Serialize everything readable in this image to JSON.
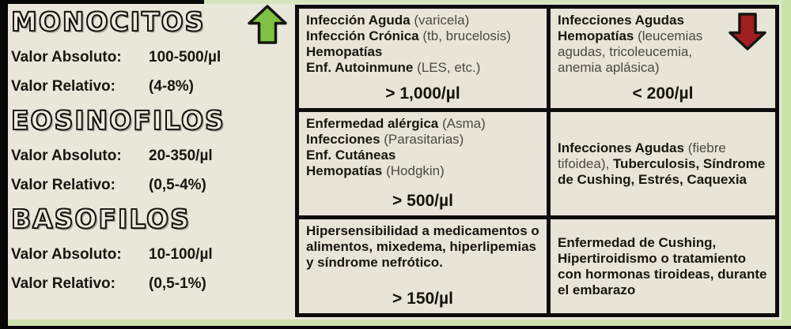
{
  "colors": {
    "background_beige": "#e9e6da",
    "frame_black": "#070707",
    "accent_green_strip": "#cde3ad",
    "arrow_up_green": "#7dc242",
    "arrow_down_red": "#a01d20",
    "text_dark": "#17160f"
  },
  "panel": {
    "sections": [
      {
        "title": "MONOCITOS",
        "abs_label": "Valor Absoluto:",
        "abs_value": "100-500/µl",
        "rel_label": "Valor Relativo:",
        "rel_value": "(4-8%)"
      },
      {
        "title": "EOSINOFILOS",
        "abs_label": "Valor Absoluto:",
        "abs_value": "20-350/µl",
        "rel_label": "Valor Relativo:",
        "rel_value": "(0,5-4%)"
      },
      {
        "title": "BASOFILOS",
        "abs_label": "Valor Absoluto:",
        "abs_value": "10-100/µl",
        "rel_label": "Valor Relativo:",
        "rel_value": "(0,5-1%)"
      }
    ]
  },
  "icons": {
    "up_arrow": "increase-arrow",
    "down_arrow": "decrease-arrow"
  },
  "table": {
    "cells": [
      {
        "name": "monocytosis-causes",
        "lines": [
          [
            {
              "t": "Infección Aguda ",
              "b": 1
            },
            {
              "t": "(varicela)",
              "b": 0
            }
          ],
          [
            {
              "t": "Infección Crónica ",
              "b": 1
            },
            {
              "t": "(tb, brucelosis)",
              "b": 0
            }
          ],
          [
            {
              "t": "Hemopatías",
              "b": 1
            }
          ],
          [
            {
              "t": "Enf. Autoinmune ",
              "b": 1
            },
            {
              "t": "(LES, etc.)",
              "b": 0
            }
          ]
        ],
        "threshold": "> 1,000/µl"
      },
      {
        "name": "monocytopenia-causes",
        "lines": [
          [
            {
              "t": "Infecciones Agudas",
              "b": 1
            }
          ],
          [
            {
              "t": "Hemopatías ",
              "b": 1
            },
            {
              "t": "(leucemias agudas, tricoleucemia, anemia aplásica)",
              "b": 0
            }
          ]
        ],
        "threshold": "< 200/µl"
      },
      {
        "name": "eosinophilia-causes",
        "lines": [
          [
            {
              "t": "Enfermedad alérgica ",
              "b": 1
            },
            {
              "t": "(Asma)",
              "b": 0
            }
          ],
          [
            {
              "t": "Infecciones ",
              "b": 1
            },
            {
              "t": "(Parasitarias)",
              "b": 0
            }
          ],
          [
            {
              "t": "Enf. Cutáneas",
              "b": 1
            }
          ],
          [
            {
              "t": "Hemopatías ",
              "b": 1
            },
            {
              "t": "(Hodgkin)",
              "b": 0
            }
          ]
        ],
        "threshold": "> 500/µl"
      },
      {
        "name": "eosinopenia-causes",
        "lines": [
          [
            {
              "t": "Infecciones Agudas ",
              "b": 1
            },
            {
              "t": "(fiebre tifoidea), ",
              "b": 0
            },
            {
              "t": "Tuberculosis, Síndrome de Cushing, Estrés, Caquexia",
              "b": 1
            }
          ]
        ],
        "threshold": ""
      },
      {
        "name": "basophilia-causes",
        "lines": [
          [
            {
              "t": "Hipersensibilidad a medicamentos o alimentos, mixedema, hiperlipemias y síndrome nefrótico.",
              "b": 1
            }
          ]
        ],
        "threshold": "> 150/µl"
      },
      {
        "name": "basopenia-causes",
        "lines": [
          [
            {
              "t": "Enfermedad de Cushing, Hipertiroidismo o tratamiento con hormonas tiroideas, durante el embarazo",
              "b": 1
            }
          ]
        ],
        "threshold": ""
      }
    ]
  }
}
